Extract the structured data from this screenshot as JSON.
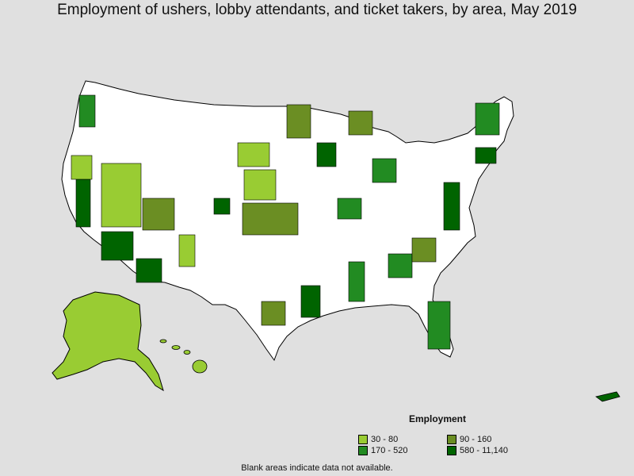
{
  "title": "Employment of ushers, lobby attendants, and ticket takers, by area, May 2019",
  "legend": {
    "title": "Employment",
    "items": [
      {
        "label": "30 - 80",
        "color": "#99cc33"
      },
      {
        "label": "90 - 160",
        "color": "#6b8e23"
      },
      {
        "label": "170 - 520",
        "color": "#228b22"
      },
      {
        "label": "580 - 11,140",
        "color": "#006400"
      }
    ]
  },
  "footnote": "Blank areas indicate data not available.",
  "colors": {
    "background": "#e0e0e0",
    "no_data": "#ffffff",
    "border": "#000000"
  }
}
